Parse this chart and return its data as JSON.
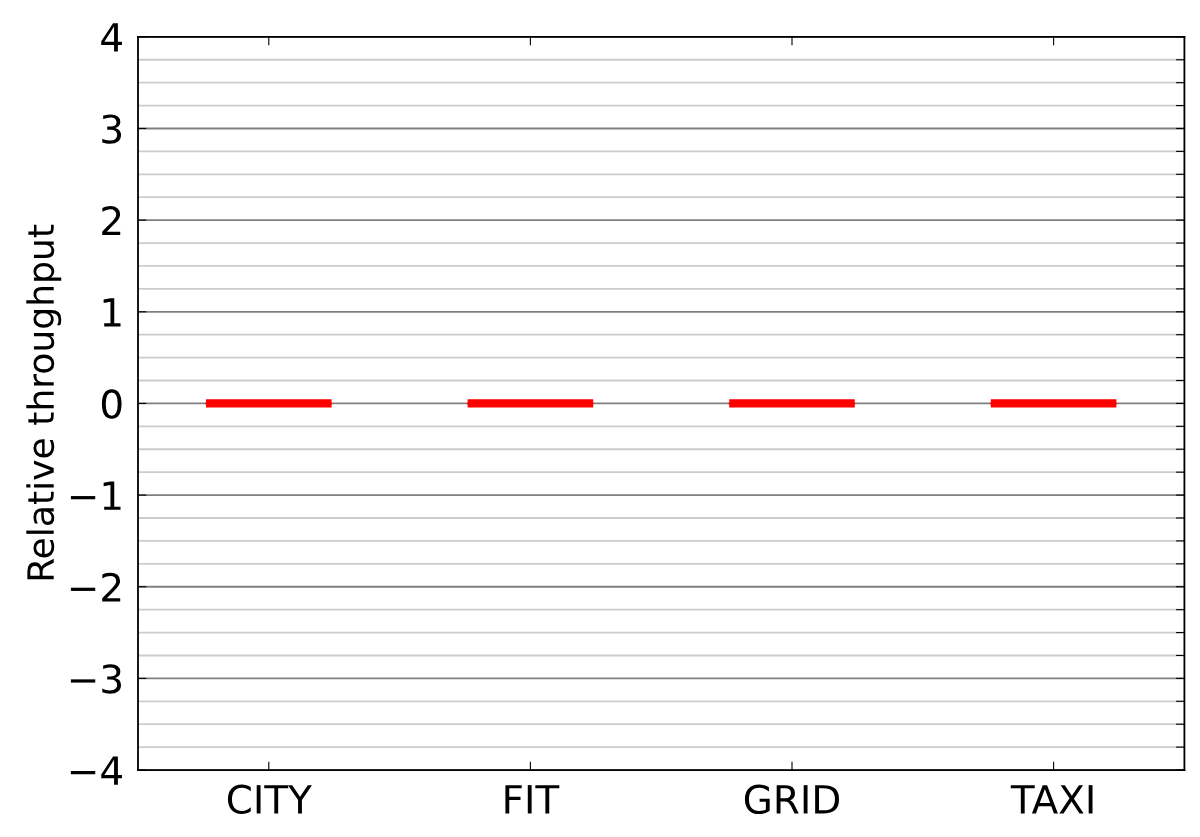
{
  "chart_data": {
    "type": "box",
    "ylabel": "Relative throughput",
    "categories": [
      "CITY",
      "FIT",
      "GRID",
      "TAXI"
    ],
    "boxes": [
      {
        "low": 0,
        "q1": 0,
        "median": 0,
        "q3": 0,
        "high": 0
      },
      {
        "low": 0,
        "q1": 0,
        "median": 0,
        "q3": 0,
        "high": 0
      },
      {
        "low": 0,
        "q1": 0,
        "median": 0,
        "q3": 0,
        "high": 0
      },
      {
        "low": 0,
        "q1": 0,
        "median": 0,
        "q3": 0,
        "high": 0
      }
    ],
    "color": "#ff0000",
    "ylim": [
      -4,
      4
    ],
    "yticks": [
      -4,
      {
        "value": -3.75,
        "label": null
      },
      {
        "value": -3.5,
        "label": null
      },
      {
        "value": -3.25,
        "label": null
      },
      -3,
      {
        "value": -2.75,
        "label": null
      },
      {
        "value": -2.5,
        "label": null
      },
      {
        "value": -2.25,
        "label": null
      },
      -2,
      {
        "value": -1.75,
        "label": null
      },
      {
        "value": -1.5,
        "label": null
      },
      {
        "value": -1.25,
        "label": null
      },
      -1,
      {
        "value": -0.75,
        "label": null
      },
      {
        "value": -0.5,
        "label": null
      },
      {
        "value": -0.25,
        "label": null
      },
      0,
      {
        "value": 0.25,
        "label": null
      },
      {
        "value": 0.5,
        "label": null
      },
      {
        "value": 0.75,
        "label": null
      },
      1,
      {
        "value": 1.25,
        "label": null
      },
      {
        "value": 1.5,
        "label": null
      },
      {
        "value": 1.75,
        "label": null
      },
      2,
      {
        "value": 2.25,
        "label": null
      },
      {
        "value": 2.5,
        "label": null
      },
      {
        "value": 2.75,
        "label": null
      },
      3,
      {
        "value": 3.25,
        "label": null
      },
      {
        "value": 3.5,
        "label": null
      },
      {
        "value": 3.75,
        "label": null
      },
      4
    ],
    "grid": "y"
  }
}
